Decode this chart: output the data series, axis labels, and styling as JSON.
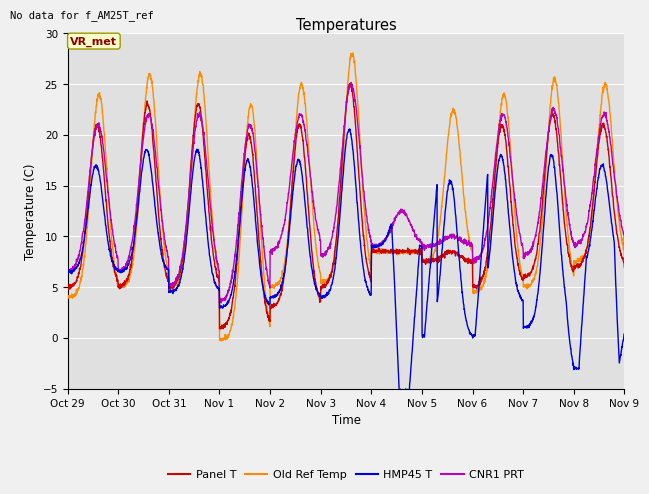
{
  "title": "Temperatures",
  "ylabel": "Temperature (C)",
  "xlabel": "Time",
  "no_data_text": "No data for f_AM25T_ref",
  "vr_met_label": "VR_met",
  "ylim": [
    -5,
    30
  ],
  "yticks": [
    -5,
    0,
    5,
    10,
    15,
    20,
    25,
    30
  ],
  "x_labels": [
    "Oct 29",
    "Oct 30",
    "Oct 31",
    "Nov 1",
    "Nov 2",
    "Nov 3",
    "Nov 4",
    "Nov 5",
    "Nov 6",
    "Nov 7",
    "Nov 8",
    "Nov 9"
  ],
  "legend_entries": [
    "Panel T",
    "Old Ref Temp",
    "HMP45 T",
    "CNR1 PRT"
  ],
  "colors": {
    "panel_t": "#cc0000",
    "old_ref_temp": "#ff8c00",
    "hmp45_t": "#0000dd",
    "cnr1_prt": "#bb00bb"
  },
  "bg_color": "#e0e0e0",
  "fig_color": "#f0f0f0",
  "grid_color": "#ffffff"
}
